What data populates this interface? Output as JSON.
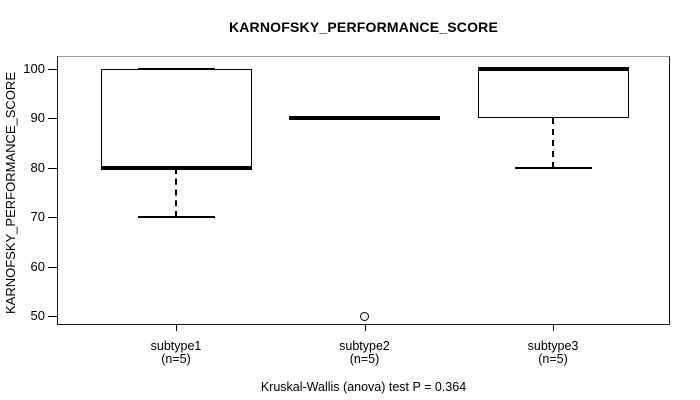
{
  "title": "KARNOFSKY_PERFORMANCE_SCORE",
  "caption": "Kruskal-Wallis (anova) test P = 0.364",
  "chart_data": {
    "type": "boxplot",
    "title": "KARNOFSKY_PERFORMANCE_SCORE",
    "xlabel": "",
    "ylabel": "KARNOFSKY_PERFORMANCE_SCORE",
    "yticks": [
      50,
      60,
      70,
      80,
      90,
      100
    ],
    "ylim": [
      47.5,
      102.5
    ],
    "grid": false,
    "legend": "none",
    "caption": "Kruskal-Wallis (anova) test P = 0.364",
    "colors": {
      "line": "#000000",
      "box_fill": "#ffffff",
      "background": "#ffffff"
    },
    "groups": [
      {
        "label": "subtype1",
        "sublabel": "(n=5)",
        "n": 5,
        "whisker_low": 70,
        "q1": 80,
        "median": 80,
        "q3": 100,
        "whisker_high": 100,
        "outliers": []
      },
      {
        "label": "subtype2",
        "sublabel": "(n=5)",
        "n": 5,
        "whisker_low": 90,
        "q1": 90,
        "median": 90,
        "q3": 90,
        "whisker_high": 90,
        "outliers": [
          50
        ]
      },
      {
        "label": "subtype3",
        "sublabel": "(n=5)",
        "n": 5,
        "whisker_low": 80,
        "q1": 90,
        "median": 100,
        "q3": 100,
        "whisker_high": 100,
        "outliers": []
      }
    ]
  }
}
